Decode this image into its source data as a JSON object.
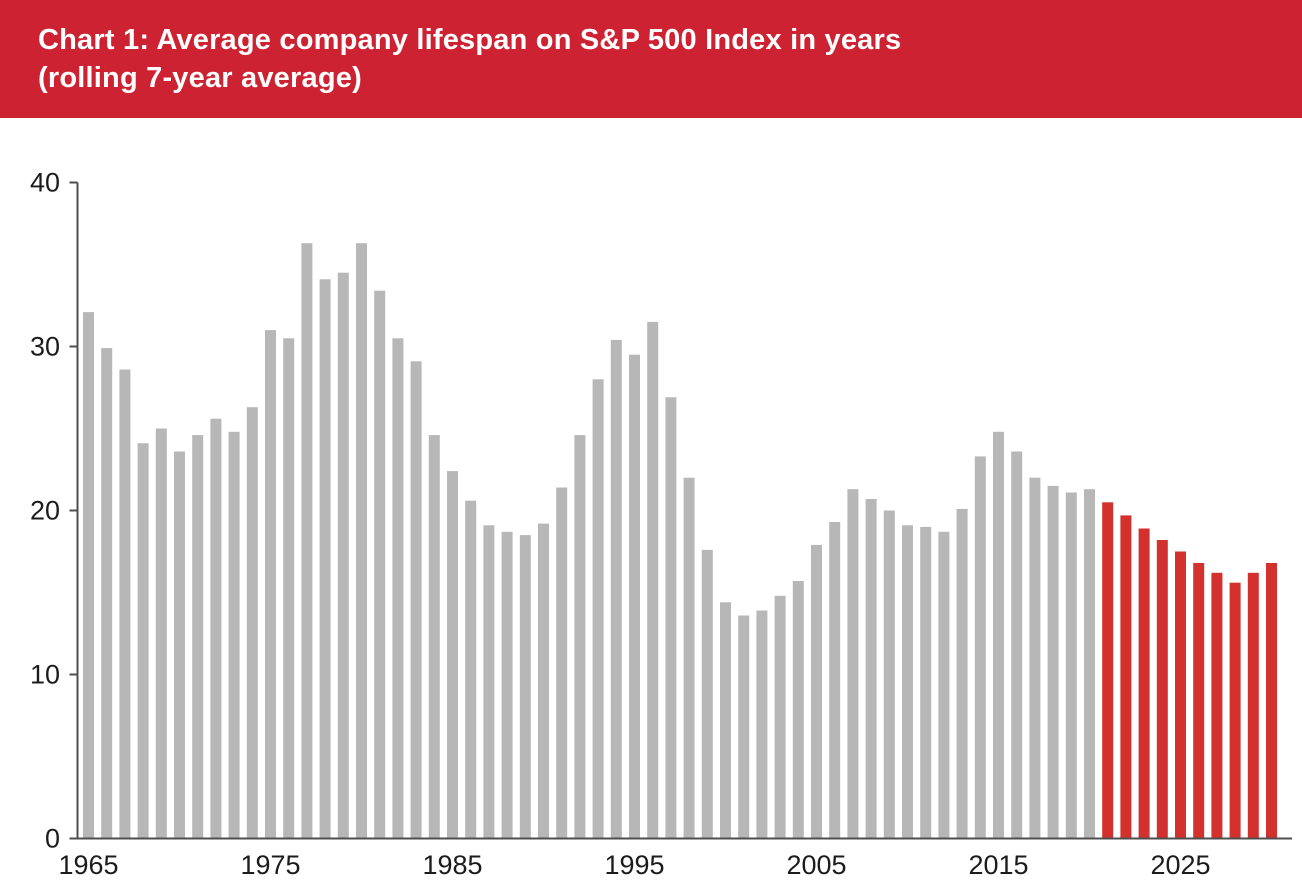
{
  "header": {
    "title_line1": "Chart 1: Average company lifespan on S&P 500 Index in years",
    "title_line2": "(rolling 7-year average)",
    "bg_color": "#cd2232",
    "text_color": "#ffffff"
  },
  "axis": {
    "line_color": "#4f4f4f",
    "label_color": "#1c1c1c",
    "tick_length": 8
  },
  "chart_data": {
    "type": "bar",
    "title": "Chart 1: Average company lifespan on S&P 500 Index in years (rolling 7-year average)",
    "xlabel": "",
    "ylabel": "",
    "ylim": [
      0,
      40
    ],
    "y_ticks": [
      0,
      10,
      20,
      30,
      40
    ],
    "x_tick_labels": [
      1965,
      1975,
      1985,
      1995,
      2005,
      2015,
      2025
    ],
    "grid": false,
    "legend_position": "none",
    "series": [
      {
        "name": "historical",
        "color": "#b7b7b7",
        "start_year": 1965,
        "years": [
          1965,
          1966,
          1967,
          1968,
          1969,
          1970,
          1971,
          1972,
          1973,
          1974,
          1975,
          1976,
          1977,
          1978,
          1979,
          1980,
          1981,
          1982,
          1983,
          1984,
          1985,
          1986,
          1987,
          1988,
          1989,
          1990,
          1991,
          1992,
          1993,
          1994,
          1995,
          1996,
          1997,
          1998,
          1999,
          2000,
          2001,
          2002,
          2003,
          2004,
          2005,
          2006,
          2007,
          2008,
          2009,
          2010,
          2011,
          2012,
          2013,
          2014,
          2015,
          2016,
          2017,
          2018,
          2019,
          2020
        ],
        "values": [
          32.1,
          29.9,
          28.6,
          24.1,
          25.0,
          23.6,
          24.6,
          25.6,
          24.8,
          26.3,
          31.0,
          30.5,
          36.3,
          34.1,
          34.5,
          36.3,
          33.4,
          30.5,
          29.1,
          24.6,
          22.4,
          20.6,
          19.1,
          18.7,
          18.5,
          19.2,
          21.4,
          24.6,
          28.0,
          30.4,
          29.5,
          31.5,
          26.9,
          22.0,
          17.6,
          14.4,
          13.6,
          13.9,
          14.8,
          15.7,
          17.9,
          19.3,
          21.3,
          20.7,
          20.0,
          19.1,
          19.0,
          18.7,
          20.1,
          23.3,
          24.8,
          23.6,
          22.0,
          21.5,
          21.1,
          21.3
        ]
      },
      {
        "name": "forecast",
        "color": "#d3312e",
        "start_year": 2021,
        "years": [
          2021,
          2022,
          2023,
          2024,
          2025,
          2026,
          2027,
          2028,
          2029,
          2030
        ],
        "values": [
          20.5,
          19.7,
          18.9,
          18.2,
          17.5,
          16.8,
          16.2,
          15.6,
          16.2,
          16.8
        ]
      }
    ]
  }
}
